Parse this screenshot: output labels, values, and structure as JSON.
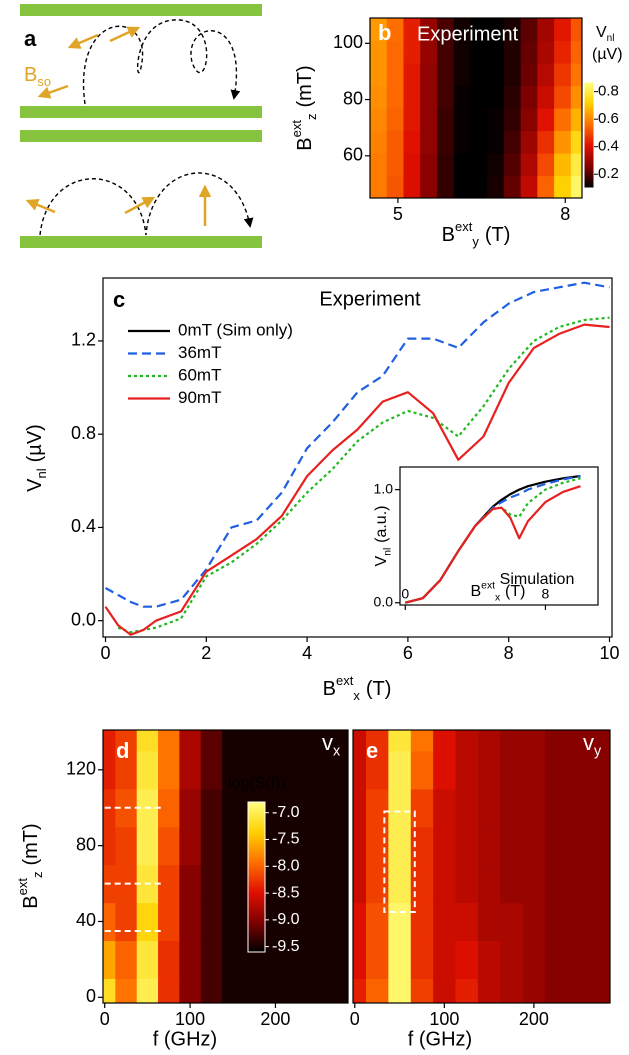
{
  "diagram": {
    "label": "a",
    "b_so": {
      "base": "B",
      "sub": "so"
    }
  },
  "chart_data": [
    {
      "type": "heatmap",
      "panel": "b",
      "title": "Experiment",
      "x": [
        4.65,
        4.95,
        5.25,
        5.55,
        5.85,
        6.15,
        6.45,
        6.75,
        7.05,
        7.35,
        7.65,
        7.95,
        8.25
      ],
      "y": [
        49,
        57,
        65,
        73,
        81,
        89,
        97,
        105
      ],
      "z": [
        [
          0.58,
          0.52,
          0.4,
          0.27,
          0.16,
          0.1,
          0.09,
          0.13,
          0.22,
          0.36,
          0.54,
          0.72,
          0.84
        ],
        [
          0.58,
          0.53,
          0.4,
          0.27,
          0.16,
          0.1,
          0.09,
          0.12,
          0.2,
          0.33,
          0.5,
          0.68,
          0.8
        ],
        [
          0.59,
          0.53,
          0.41,
          0.28,
          0.17,
          0.11,
          0.09,
          0.11,
          0.18,
          0.3,
          0.46,
          0.62,
          0.74
        ],
        [
          0.6,
          0.54,
          0.42,
          0.28,
          0.17,
          0.11,
          0.09,
          0.11,
          0.16,
          0.27,
          0.41,
          0.56,
          0.67
        ],
        [
          0.61,
          0.55,
          0.42,
          0.28,
          0.18,
          0.11,
          0.1,
          0.1,
          0.15,
          0.25,
          0.37,
          0.5,
          0.61
        ],
        [
          0.62,
          0.55,
          0.42,
          0.28,
          0.18,
          0.12,
          0.1,
          0.1,
          0.14,
          0.23,
          0.34,
          0.47,
          0.57
        ],
        [
          0.62,
          0.55,
          0.43,
          0.29,
          0.18,
          0.12,
          0.1,
          0.1,
          0.14,
          0.22,
          0.32,
          0.44,
          0.54
        ],
        [
          0.63,
          0.56,
          0.43,
          0.29,
          0.19,
          0.12,
          0.1,
          0.1,
          0.13,
          0.21,
          0.31,
          0.42,
          0.52
        ]
      ],
      "xlim": [
        4.5,
        8.3
      ],
      "ylim": [
        45,
        109
      ],
      "xticks": [
        5,
        8
      ],
      "yticks": [
        60,
        80,
        100
      ],
      "x_label": {
        "base": "B",
        "sup": "ext",
        "sub": "y",
        "unit": "(T)"
      },
      "y_label": {
        "base": "B",
        "sup": "ext",
        "sub": "z",
        "unit": "(mT)"
      },
      "clim": [
        0.1,
        0.87
      ],
      "colormap": [
        "#000000",
        "#800000",
        "#e01000",
        "#ff7000",
        "#ffd000",
        "#ffff80"
      ],
      "colorbar": {
        "label": {
          "base": "V",
          "sub": "nl",
          "unit": "(µV)"
        },
        "ticks": [
          0.2,
          0.4,
          0.6,
          0.8
        ]
      }
    },
    {
      "type": "line",
      "panel": "c",
      "title": "Experiment",
      "x": [
        0,
        0.25,
        0.5,
        0.75,
        1,
        1.5,
        2,
        2.5,
        3,
        3.5,
        4,
        4.5,
        5,
        5.5,
        6,
        6.5,
        7,
        7.5,
        8,
        8.5,
        9,
        9.5,
        10
      ],
      "series": [
        {
          "name": "0mT (Sim only)",
          "color": "#000000",
          "dash": "solid",
          "values": [
            null,
            null,
            null,
            null,
            null,
            null,
            null,
            null,
            null,
            null,
            null,
            null,
            null,
            null,
            null,
            null,
            null,
            null,
            null,
            null,
            null,
            null,
            null
          ]
        },
        {
          "name": "36mT",
          "color": "#1f5fe0",
          "dash": "dashed",
          "values": [
            0.14,
            0.11,
            0.08,
            0.06,
            0.06,
            0.09,
            0.22,
            0.4,
            0.43,
            0.55,
            0.74,
            0.85,
            0.98,
            1.05,
            1.21,
            1.21,
            1.17,
            1.28,
            1.36,
            1.41,
            1.43,
            1.45,
            1.43
          ]
        },
        {
          "name": "60mT",
          "color": "#22b822",
          "dash": "dotted",
          "values": [
            null,
            -0.03,
            -0.05,
            -0.04,
            -0.03,
            0.01,
            0.19,
            0.25,
            0.33,
            0.43,
            0.55,
            0.65,
            0.77,
            0.85,
            0.9,
            0.87,
            0.79,
            0.92,
            1.08,
            1.2,
            1.26,
            1.29,
            1.3
          ]
        },
        {
          "name": "90mT",
          "color": "#e82020",
          "dash": "solid",
          "values": [
            0.06,
            -0.02,
            -0.06,
            -0.04,
            0,
            0.04,
            0.21,
            0.28,
            0.35,
            0.45,
            0.62,
            0.73,
            0.82,
            0.94,
            0.98,
            0.89,
            0.69,
            0.79,
            1.02,
            1.17,
            1.23,
            1.27,
            1.26
          ]
        }
      ],
      "xlim": [
        -0.05,
        10.05
      ],
      "ylim": [
        -0.07,
        1.47
      ],
      "xticks": [
        0,
        2,
        4,
        6,
        8,
        10
      ],
      "yticks": [
        {
          "value": 0,
          "label": "0.0"
        },
        0.4,
        0.8,
        1.2
      ],
      "x_label": {
        "base": "B",
        "sup": "ext",
        "sub": "x",
        "unit": "(T)"
      },
      "y_label": {
        "base": "V",
        "sub": "nl",
        "unit": "(µV)"
      }
    },
    {
      "type": "line",
      "title": "Simulation",
      "x": [
        0,
        1,
        2,
        3,
        4,
        5,
        5.5,
        6,
        6.5,
        7,
        8,
        9,
        10
      ],
      "series": [
        {
          "color": "#000000",
          "dash": "solid",
          "values": [
            0,
            0.04,
            0.2,
            0.45,
            0.68,
            0.85,
            0.91,
            0.96,
            1.0,
            1.03,
            1.07,
            1.1,
            1.12
          ]
        },
        {
          "color": "#1f5fe0",
          "dash": "dashed",
          "values": [
            0,
            0.04,
            0.2,
            0.45,
            0.68,
            0.84,
            0.89,
            0.93,
            0.96,
            1.0,
            1.05,
            1.09,
            1.12
          ]
        },
        {
          "color": "#22b822",
          "dash": "dotted",
          "values": [
            0,
            0.04,
            0.2,
            0.45,
            0.68,
            0.83,
            0.84,
            0.78,
            0.76,
            0.88,
            1.0,
            1.06,
            1.1
          ]
        },
        {
          "color": "#e82020",
          "dash": "solid",
          "values": [
            0,
            0.04,
            0.2,
            0.45,
            0.68,
            0.83,
            0.84,
            0.75,
            0.57,
            0.72,
            0.89,
            0.98,
            1.03
          ]
        }
      ],
      "xlim": [
        -0.3,
        11.0
      ],
      "ylim": [
        -0.02,
        1.2
      ],
      "xticks": [
        0,
        8
      ],
      "yticks": [
        {
          "value": 0,
          "label": "0.0"
        },
        {
          "value": 1,
          "label": "1.0"
        }
      ],
      "x_label": {
        "base": "B",
        "sup": "ext",
        "sub": "x",
        "unit": "(T)"
      },
      "y_label": {
        "base": "V",
        "sub": "nl",
        "unit": "(a.u.)"
      }
    },
    {
      "type": "heatmap",
      "panel": "d",
      "title": {
        "base": "v",
        "sub": "x"
      },
      "x": [
        0,
        25,
        50,
        75,
        100,
        125,
        150,
        175,
        200,
        225,
        250,
        275
      ],
      "y": [
        0,
        20,
        40,
        60,
        80,
        100,
        120,
        140
      ],
      "z": [
        [
          -7.2,
          -7.9,
          -7.0,
          -8.3,
          -9.0,
          -9.3,
          -9.5,
          -9.5,
          -9.5,
          -9.5,
          -9.5,
          -9.5
        ],
        [
          -7.6,
          -8.0,
          -7.1,
          -8.3,
          -9.0,
          -9.3,
          -9.5,
          -9.5,
          -9.5,
          -9.5,
          -9.5,
          -9.5
        ],
        [
          -8.0,
          -8.2,
          -7.3,
          -8.2,
          -9.0,
          -9.3,
          -9.5,
          -9.5,
          -9.5,
          -9.5,
          -9.5,
          -9.5
        ],
        [
          -8.2,
          -8.2,
          -7.1,
          -8.2,
          -9.0,
          -9.3,
          -9.5,
          -9.5,
          -9.5,
          -9.5,
          -9.5,
          -9.5
        ],
        [
          -8.3,
          -8.2,
          -7.0,
          -8.1,
          -8.9,
          -9.3,
          -9.5,
          -9.5,
          -9.5,
          -9.5,
          -9.5,
          -9.5
        ],
        [
          -8.3,
          -8.1,
          -7.0,
          -8.0,
          -8.9,
          -9.3,
          -9.5,
          -9.5,
          -9.5,
          -9.5,
          -9.5,
          -9.5
        ],
        [
          -8.4,
          -8.2,
          -7.1,
          -7.9,
          -8.8,
          -9.2,
          -9.5,
          -9.5,
          -9.5,
          -9.5,
          -9.5,
          -9.5
        ],
        [
          -8.4,
          -8.2,
          -7.2,
          -7.9,
          -8.8,
          -9.2,
          -9.5,
          -9.5,
          -9.5,
          -9.5,
          -9.5,
          -9.5
        ]
      ],
      "xlim": [
        -2,
        285
      ],
      "ylim": [
        -3,
        141
      ],
      "xticks": [
        0,
        100,
        200
      ],
      "yticks": [
        0,
        40,
        80,
        120
      ],
      "x_label": "f (GHz)",
      "y_label": {
        "base": "B",
        "sup": "ext",
        "sub": "z",
        "unit": "(mT)"
      },
      "clim": [
        -9.6,
        -6.8
      ],
      "colormap": [
        "#000000",
        "#800000",
        "#e01000",
        "#ff7000",
        "#ffd000",
        "#ffff80"
      ],
      "colorbar": {
        "label": "log(S(f))",
        "ticks": [
          {
            "value": -7,
            "label": "-7.0"
          },
          -7.5,
          {
            "value": -8,
            "label": "-8.0"
          },
          -8.5,
          {
            "value": -9,
            "label": "-9.0"
          },
          -9.5
        ]
      },
      "hlines": [
        35,
        60,
        100
      ],
      "hline_x": [
        0,
        70
      ]
    },
    {
      "type": "heatmap",
      "panel": "e",
      "title": {
        "base": "v",
        "sub": "y"
      },
      "x": [
        0,
        25,
        50,
        75,
        100,
        125,
        150,
        175,
        200,
        225,
        250,
        275
      ],
      "y": [
        0,
        20,
        40,
        60,
        80,
        100,
        120,
        140
      ],
      "z": [
        [
          -8.4,
          -8.0,
          -6.9,
          -8.2,
          -8.6,
          -8.4,
          -8.7,
          -8.8,
          -8.9,
          -9.0,
          -9.0,
          -9.0
        ],
        [
          -8.5,
          -8.1,
          -6.9,
          -8.3,
          -8.6,
          -8.5,
          -8.7,
          -8.8,
          -8.9,
          -9.0,
          -9.0,
          -9.0
        ],
        [
          -8.5,
          -8.1,
          -6.9,
          -8.3,
          -8.6,
          -8.6,
          -8.8,
          -8.8,
          -8.9,
          -9.0,
          -9.0,
          -9.0
        ],
        [
          -8.6,
          -8.2,
          -7.0,
          -8.3,
          -8.6,
          -8.7,
          -8.8,
          -8.9,
          -8.9,
          -9.0,
          -9.0,
          -9.0
        ],
        [
          -8.6,
          -8.2,
          -7.0,
          -8.3,
          -8.6,
          -8.7,
          -8.8,
          -8.9,
          -8.9,
          -9.0,
          -9.0,
          -9.0
        ],
        [
          -8.6,
          -8.2,
          -7.0,
          -8.2,
          -8.6,
          -8.7,
          -8.8,
          -8.9,
          -8.9,
          -9.0,
          -9.0,
          -9.0
        ],
        [
          -8.6,
          -8.3,
          -7.0,
          -8.0,
          -8.5,
          -8.7,
          -8.8,
          -8.9,
          -8.9,
          -9.0,
          -9.0,
          -9.0
        ],
        [
          -8.6,
          -8.3,
          -7.1,
          -7.9,
          -8.5,
          -8.7,
          -8.8,
          -8.9,
          -8.9,
          -9.0,
          -9.0,
          -9.0
        ]
      ],
      "xlim": [
        -2,
        285
      ],
      "ylim": [
        -3,
        141
      ],
      "xticks": [
        0,
        100,
        200
      ],
      "x_label": "f (GHz)",
      "clim": [
        -9.6,
        -6.8
      ],
      "colormap": [
        "#000000",
        "#800000",
        "#e01000",
        "#ff7000",
        "#ffd000",
        "#ffff80"
      ],
      "box": {
        "x": [
          33,
          67
        ],
        "y": [
          45,
          98
        ]
      }
    }
  ]
}
